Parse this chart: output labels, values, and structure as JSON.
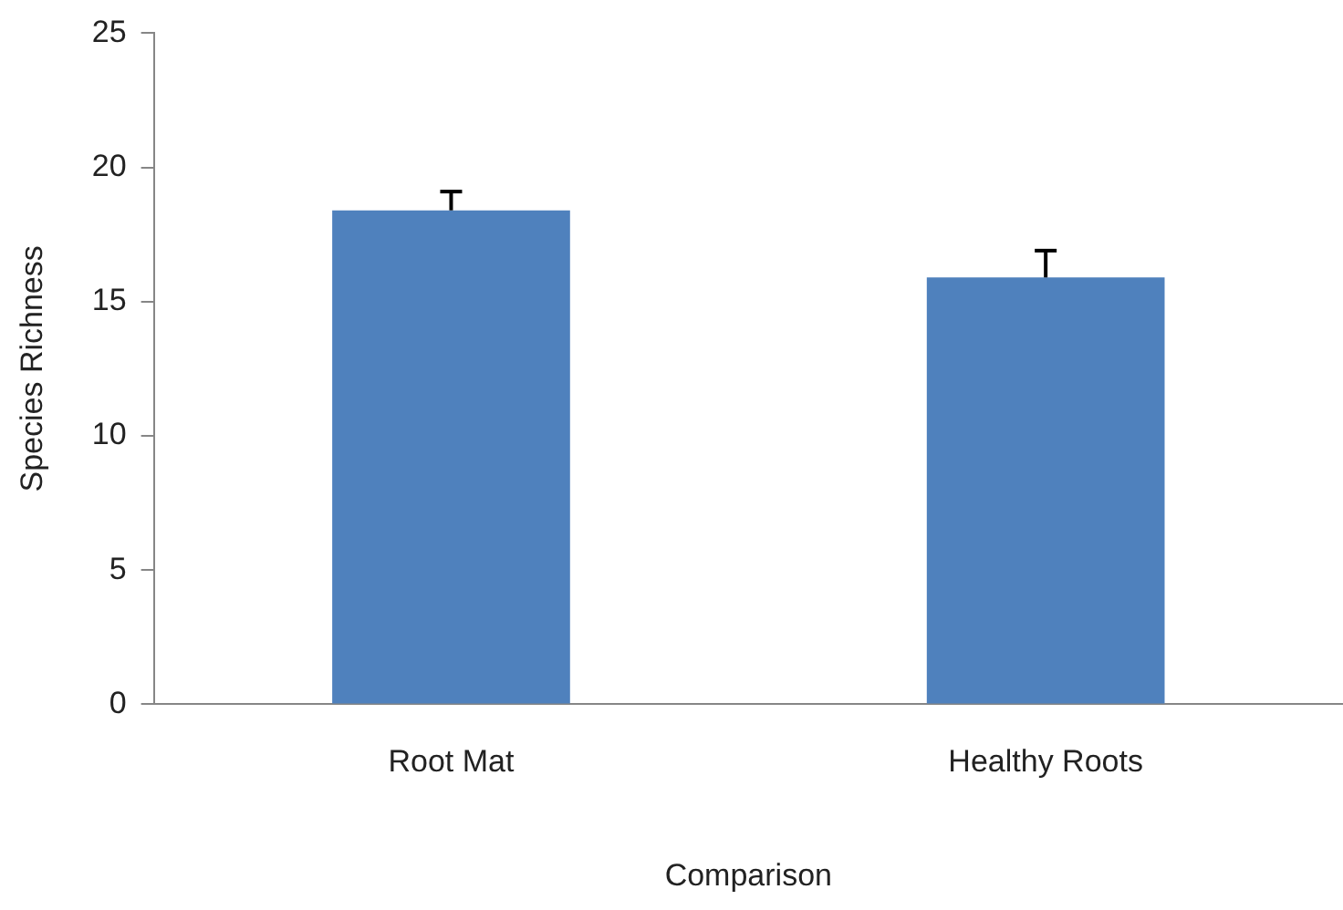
{
  "chart_data": {
    "type": "bar",
    "xlabel": "Comparison",
    "ylabel": "Species Richness",
    "categories": [
      "Root Mat",
      "Healthy Roots"
    ],
    "values": [
      18.4,
      15.9
    ],
    "errors": [
      [
        18.4,
        19.1
      ],
      [
        15.9,
        16.9
      ]
    ],
    "color": "#4f81bd",
    "ylim": [
      0,
      25
    ],
    "yticks": [
      0,
      5,
      10,
      15,
      20,
      25
    ],
    "grid": false,
    "legend": false
  }
}
